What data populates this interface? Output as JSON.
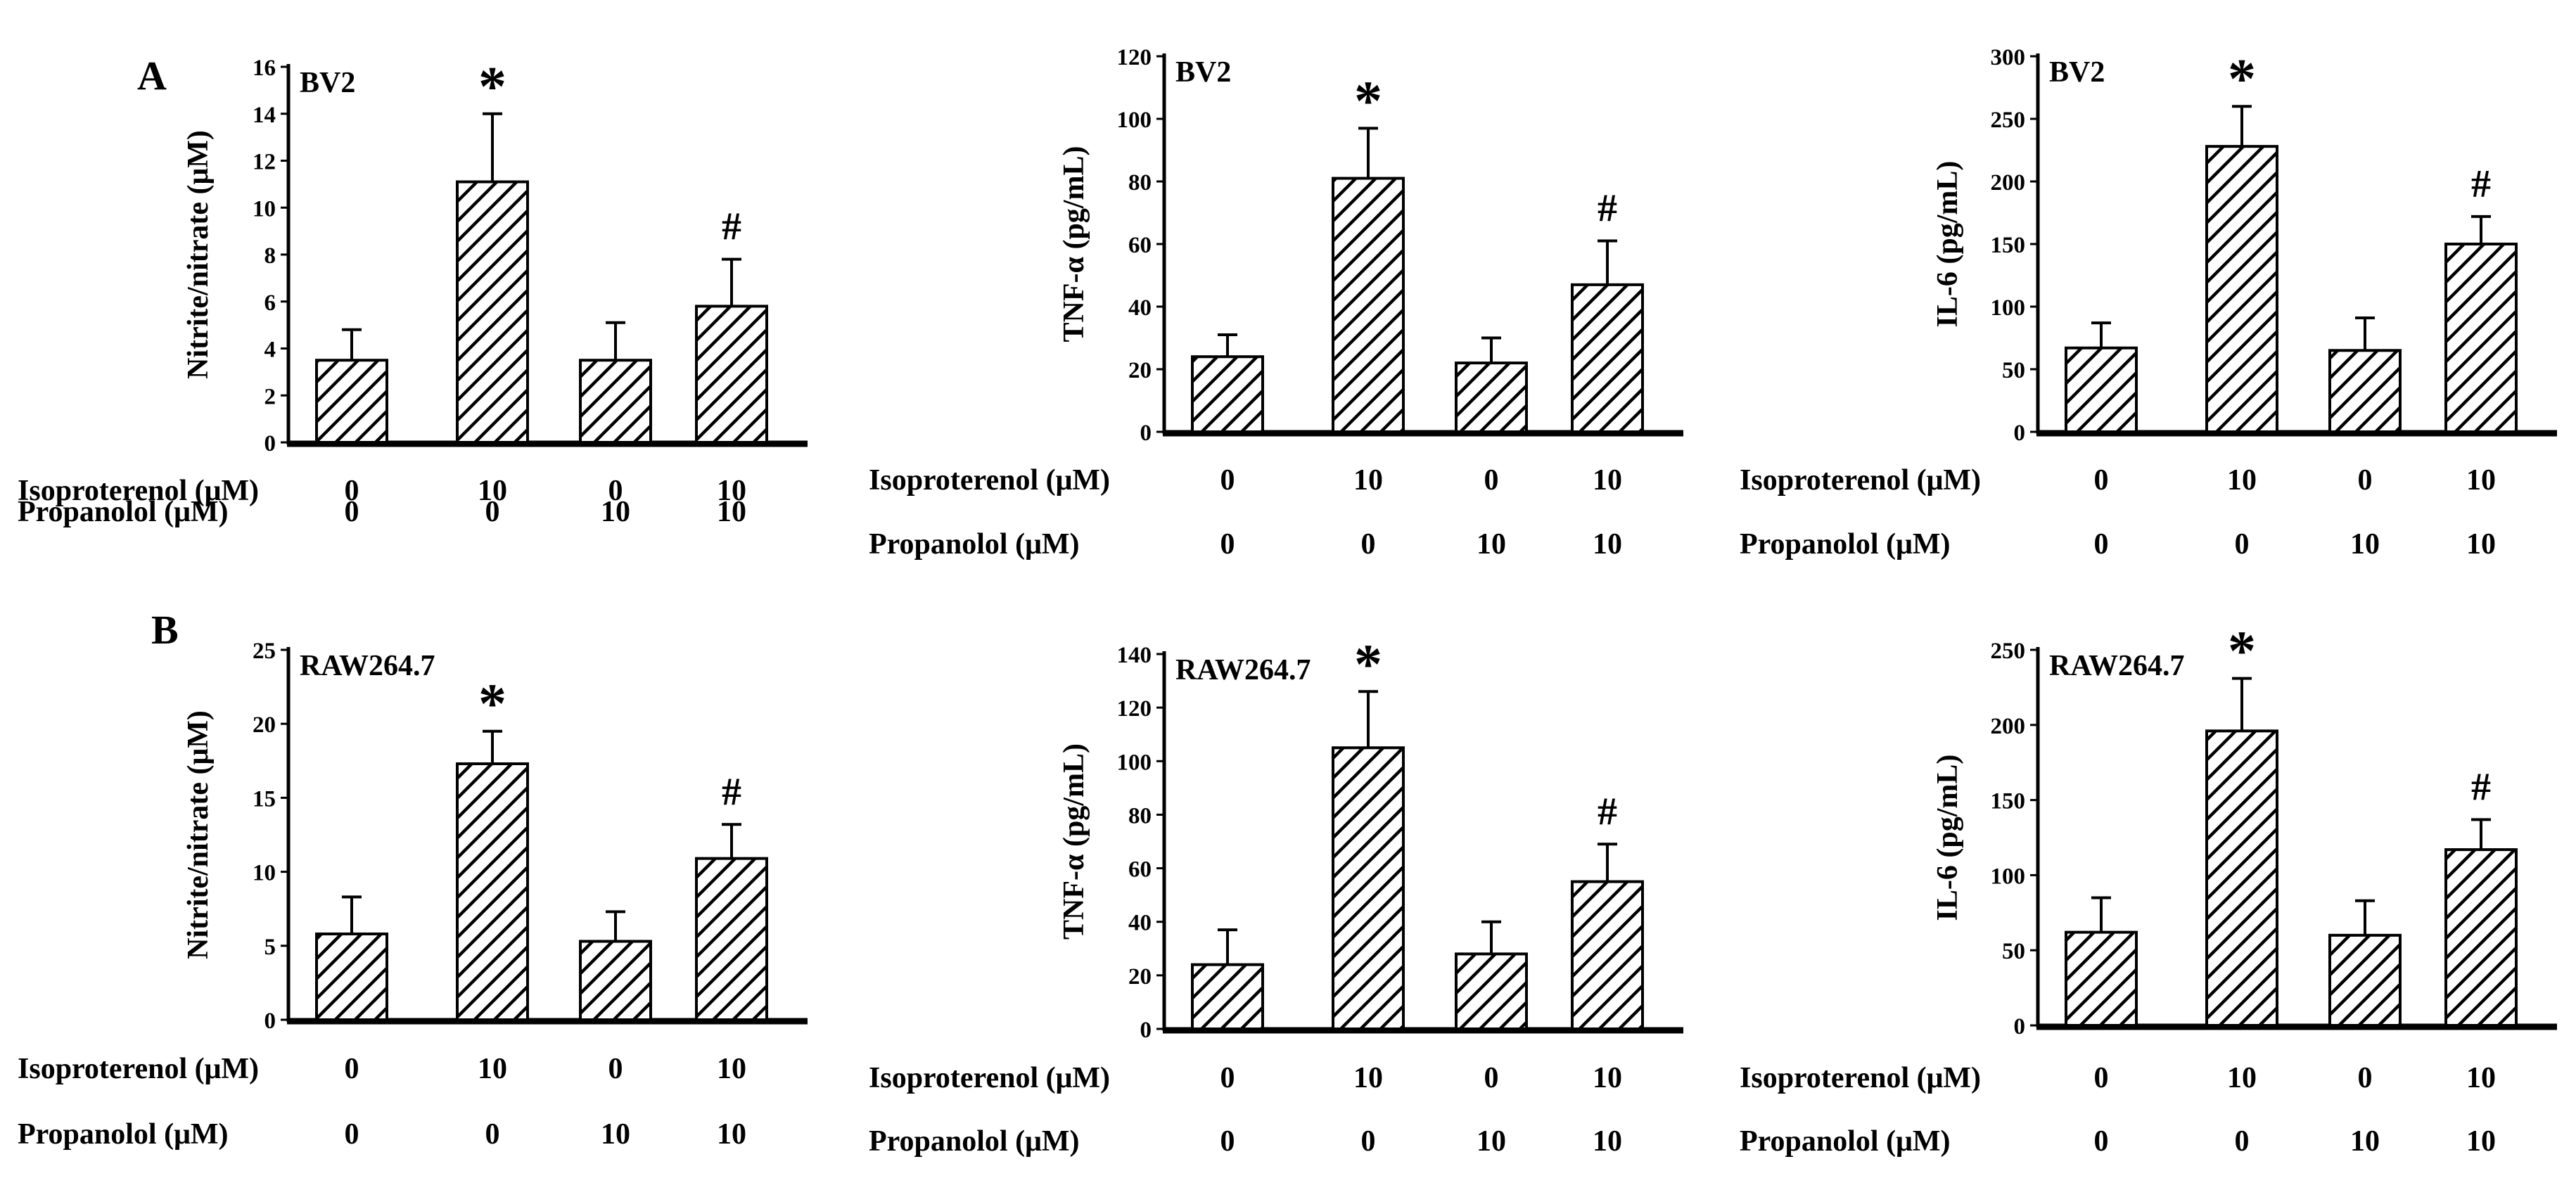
{
  "panel_labels": [
    "A",
    "B"
  ],
  "row_labels": {
    "isoproterenol": "Isoproterenol (μM)",
    "propanolol": "Propanolol (μM)"
  },
  "chart_data": [
    {
      "type": "bar",
      "panel": "A",
      "title": "BV2",
      "ylabel": "Nitrite/nitrate (μM)",
      "ylim": [
        0,
        16
      ],
      "yticks": [
        0,
        2,
        4,
        6,
        8,
        10,
        12,
        14,
        16
      ],
      "values": [
        3.5,
        11.1,
        3.5,
        5.8
      ],
      "errors": [
        1.3,
        2.9,
        1.6,
        2.0
      ],
      "annotations": [
        "",
        "*",
        "",
        "#"
      ],
      "isoproterenol": [
        "0",
        "10",
        "0",
        "10"
      ],
      "propanolol": [
        "0",
        "0",
        "10",
        "10"
      ]
    },
    {
      "type": "bar",
      "panel": "A",
      "title": "BV2",
      "ylabel": "TNF-α  (pg/mL)",
      "ylim": [
        0,
        120
      ],
      "yticks": [
        0,
        20,
        40,
        60,
        80,
        100,
        120
      ],
      "values": [
        24,
        81,
        22,
        47
      ],
      "errors": [
        7,
        16,
        8,
        14
      ],
      "annotations": [
        "",
        "*",
        "",
        "#"
      ],
      "isoproterenol": [
        "0",
        "10",
        "0",
        "10"
      ],
      "propanolol": [
        "0",
        "0",
        "10",
        "10"
      ]
    },
    {
      "type": "bar",
      "panel": "A",
      "title": "BV2",
      "ylabel": "IL-6  (pg/mL)",
      "ylim": [
        0,
        300
      ],
      "yticks": [
        0,
        50,
        100,
        150,
        200,
        250,
        300
      ],
      "values": [
        67,
        228,
        65,
        150
      ],
      "errors": [
        20,
        32,
        26,
        22
      ],
      "annotations": [
        "",
        "*",
        "",
        "#"
      ],
      "isoproterenol": [
        "0",
        "10",
        "0",
        "10"
      ],
      "propanolol": [
        "0",
        "0",
        "10",
        "10"
      ]
    },
    {
      "type": "bar",
      "panel": "B",
      "title": "RAW264.7",
      "ylabel": "Nitrite/nitrate (μM)",
      "ylim": [
        0,
        25
      ],
      "yticks": [
        0,
        5,
        10,
        15,
        20,
        25
      ],
      "values": [
        5.8,
        17.3,
        5.3,
        10.9
      ],
      "errors": [
        2.5,
        2.2,
        2.0,
        2.3
      ],
      "annotations": [
        "",
        "*",
        "",
        "#"
      ],
      "isoproterenol": [
        "0",
        "10",
        "0",
        "10"
      ],
      "propanolol": [
        "0",
        "0",
        "10",
        "10"
      ]
    },
    {
      "type": "bar",
      "panel": "B",
      "title": "RAW264.7",
      "ylabel": "TNF-α  (pg/mL)",
      "ylim": [
        0,
        140
      ],
      "yticks": [
        0,
        20,
        40,
        60,
        80,
        100,
        120,
        140
      ],
      "values": [
        24,
        105,
        28,
        55
      ],
      "errors": [
        13,
        21,
        12,
        14
      ],
      "annotations": [
        "",
        "*",
        "",
        "#"
      ],
      "isoproterenol": [
        "0",
        "10",
        "0",
        "10"
      ],
      "propanolol": [
        "0",
        "0",
        "10",
        "10"
      ]
    },
    {
      "type": "bar",
      "panel": "B",
      "title": "RAW264.7",
      "ylabel": "IL-6  (pg/mL)",
      "ylim": [
        0,
        250
      ],
      "yticks": [
        0,
        50,
        100,
        150,
        200,
        250
      ],
      "values": [
        62,
        196,
        60,
        117
      ],
      "errors": [
        23,
        35,
        23,
        20
      ],
      "annotations": [
        "",
        "*",
        "",
        "#"
      ],
      "isoproterenol": [
        "0",
        "10",
        "0",
        "10"
      ],
      "propanolol": [
        "0",
        "0",
        "10",
        "10"
      ]
    }
  ]
}
